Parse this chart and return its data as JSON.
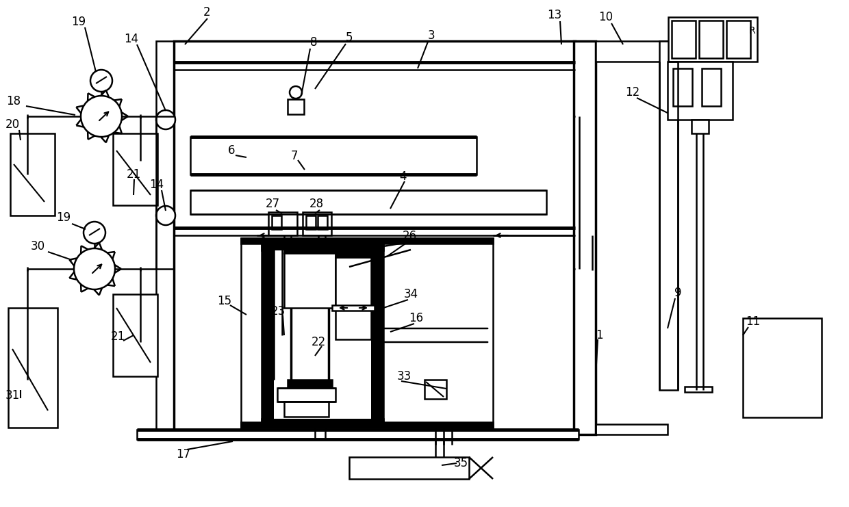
{
  "bg_color": "#ffffff",
  "line_color": "#000000",
  "lw": 1.8,
  "lw_thick": 3.5,
  "lw_med": 2.5,
  "figsize": [
    12.4,
    7.41
  ],
  "dpi": 100
}
